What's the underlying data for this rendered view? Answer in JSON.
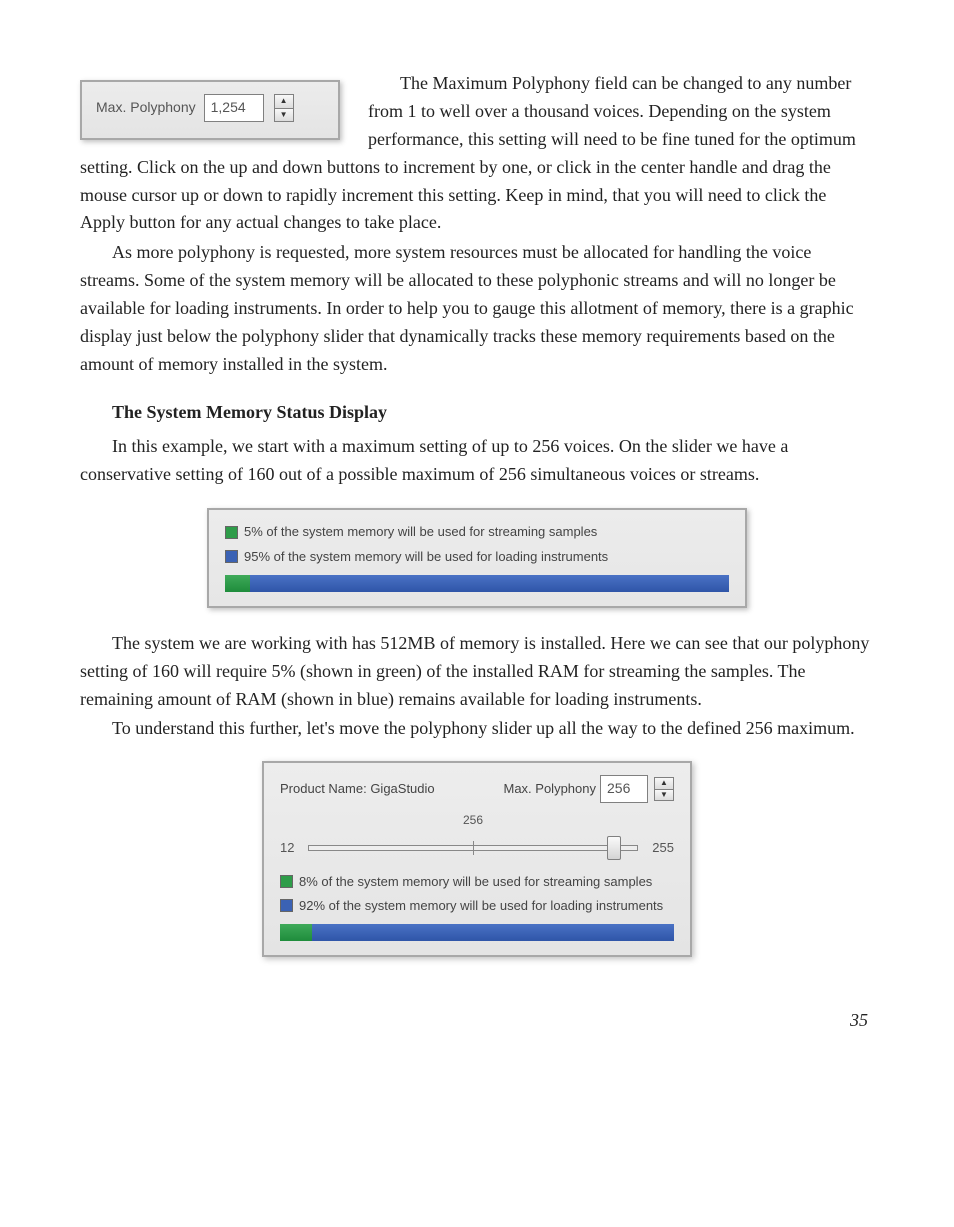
{
  "panel1": {
    "label": "Max. Polyphony",
    "value": "1,254"
  },
  "body": {
    "p1": "The Maximum Polyphony field can be changed to any number from 1 to well over a thousand voices. Depending on the system performance, this setting will need to be fine tuned for the optimum setting. Click on the up and down buttons to increment by one, or click in the center handle and drag the mouse cursor up or down to rapidly increment this setting. Keep in mind, that you will need to click the Apply button for any actual changes to take place.",
    "p2": "As more polyphony is requested, more system resources must be allocated for handling the voice streams. Some of the system memory will be allocated to these polyphonic streams and will no longer be available for loading instruments. In order to help you to gauge this allotment of memory, there is a graphic display just below the polyphony slider that dynamically tracks these memory requirements based on the amount of memory installed in the system.",
    "h1": "The System Memory Status Display",
    "p3": "In this example, we start with a maximum setting of up to 256 voices. On the slider we have a conservative setting of 160 out of a possible maximum of 256 simultaneous voices or streams.",
    "p4": "The system we are working with has 512MB of memory is installed. Here we can see that our polyphony setting of 160 will require 5% (shown in green) of the installed RAM for streaming the samples. The remaining amount of RAM (shown in blue) remains available for loading instruments.",
    "p5": "To understand this further, let's move the polyphony slider up all the way to the defined 256 maximum."
  },
  "mem1": {
    "line1": "5% of the system memory will be used for streaming samples",
    "line2": "95% of the system memory will be used for loading instruments",
    "green_pct": 5,
    "green_color": "#2e9c49",
    "blue_color": "#3b62b4"
  },
  "panel2": {
    "product_label": "Product Name: GigaStudio",
    "max_label": "Max. Polyphony",
    "max_value": "256",
    "tick256": "256",
    "slider_min": "12",
    "slider_max": "255",
    "thumb_pct": 93,
    "line1": "8% of the system memory will be used for streaming samples",
    "line2": "92% of the system memory will be used for loading instruments",
    "green_pct": 8,
    "green_color": "#2e9c49",
    "blue_color": "#3b62b4"
  },
  "page_number": "35"
}
